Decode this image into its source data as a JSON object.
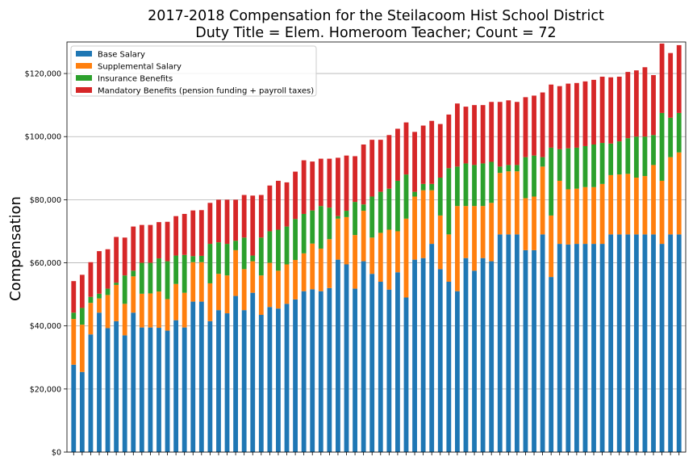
{
  "chart_data": {
    "type": "bar",
    "stacked": true,
    "title": "2017-2018 Compensation for the Steilacoom Hist School District",
    "subtitle": "Duty Title = Elem. Homeroom Teacher; Count = 72",
    "xlabel": "",
    "ylabel": "Compensation",
    "ylim": [
      0,
      130000
    ],
    "yticks": [
      0,
      20000,
      40000,
      60000,
      80000,
      100000,
      120000
    ],
    "ytick_labels": [
      "$0",
      "$20,000",
      "$40,000",
      "$60,000",
      "$80,000",
      "$100,000",
      "$120,000"
    ],
    "grid": "horizontal",
    "legend_position": "top-left",
    "series": [
      {
        "name": "Base Salary",
        "color": "#1f77b4",
        "values": [
          27700,
          25400,
          37300,
          44200,
          39300,
          41500,
          37000,
          44200,
          39500,
          39500,
          39400,
          38500,
          41800,
          39500,
          47700,
          47700,
          41500,
          45000,
          44000,
          49500,
          45000,
          50500,
          43500,
          46000,
          45500,
          47000,
          48400,
          51000,
          51600,
          51000,
          52000,
          61000,
          59500,
          51800,
          60500,
          56500,
          54000,
          51500,
          57000,
          49000,
          61000,
          61500,
          66000,
          58000,
          54000,
          51000,
          61500,
          57500,
          61500,
          60500,
          69000,
          69000,
          69000,
          64000,
          64000,
          69000,
          55500,
          66000,
          65800,
          66000,
          66000,
          66000,
          66000,
          69000,
          69000,
          69000,
          69000,
          69000,
          69000,
          66000,
          69000,
          69000
        ],
        "note": "approximate"
      },
      {
        "name": "Supplemental Salary",
        "color": "#ff7f0e",
        "values": [
          14500,
          15000,
          10000,
          4500,
          10500,
          11500,
          10000,
          11500,
          10700,
          10800,
          11500,
          10000,
          11500,
          11000,
          12500,
          12500,
          12000,
          11500,
          12000,
          14500,
          13000,
          10000,
          12500,
          14000,
          12000,
          12500,
          12500,
          12000,
          14500,
          13500,
          15500,
          13000,
          15000,
          17000,
          16000,
          11500,
          15500,
          19000,
          13000,
          25000,
          20000,
          21500,
          17000,
          17000,
          15000,
          27000,
          16500,
          20500,
          16500,
          18500,
          19500,
          20000,
          20000,
          16500,
          17000,
          21500,
          19500,
          20000,
          17500,
          17500,
          18000,
          18000,
          19000,
          18800,
          19000,
          19200,
          18000,
          18500,
          22000,
          20000,
          24500,
          26000
        ],
        "note": "approximate"
      },
      {
        "name": "Insurance Benefits",
        "color": "#2ca02c",
        "values": [
          2000,
          5300,
          1900,
          1500,
          2000,
          700,
          9000,
          1800,
          9800,
          9700,
          10500,
          12000,
          9000,
          12000,
          1900,
          2000,
          12500,
          10000,
          10000,
          3000,
          10000,
          1800,
          12000,
          10000,
          13000,
          12000,
          13000,
          12500,
          10500,
          13500,
          10000,
          800,
          2000,
          10500,
          2000,
          13000,
          13000,
          13000,
          16000,
          14000,
          1500,
          2000,
          2000,
          12000,
          21000,
          12500,
          13500,
          13000,
          13500,
          13000,
          2000,
          2000,
          2000,
          13000,
          13000,
          3000,
          21500,
          10000,
          13000,
          13000,
          13000,
          13500,
          13000,
          10000,
          10500,
          11300,
          13000,
          12500,
          9500,
          21500,
          12500,
          12500
        ],
        "note": "approximate"
      },
      {
        "name": "Mandatory Benefits (pension funding + payroll taxes)",
        "color": "#d62728",
        "values": [
          10000,
          10500,
          11000,
          13500,
          12500,
          14500,
          12000,
          14000,
          12000,
          12000,
          11500,
          12500,
          12500,
          13000,
          14500,
          14500,
          13000,
          13500,
          14000,
          13000,
          13500,
          19000,
          13500,
          14500,
          15500,
          14000,
          15000,
          17000,
          15500,
          15000,
          15500,
          18500,
          17500,
          14500,
          19000,
          18000,
          16500,
          17000,
          16500,
          16500,
          19000,
          18500,
          20000,
          17000,
          17000,
          20000,
          18000,
          19000,
          18500,
          19000,
          20500,
          20500,
          20000,
          19000,
          19000,
          20500,
          20000,
          20000,
          20500,
          20500,
          20500,
          20500,
          21000,
          21000,
          20500,
          21000,
          21000,
          22000,
          19000,
          22000,
          20500,
          21500
        ],
        "note": "approximate"
      }
    ]
  }
}
